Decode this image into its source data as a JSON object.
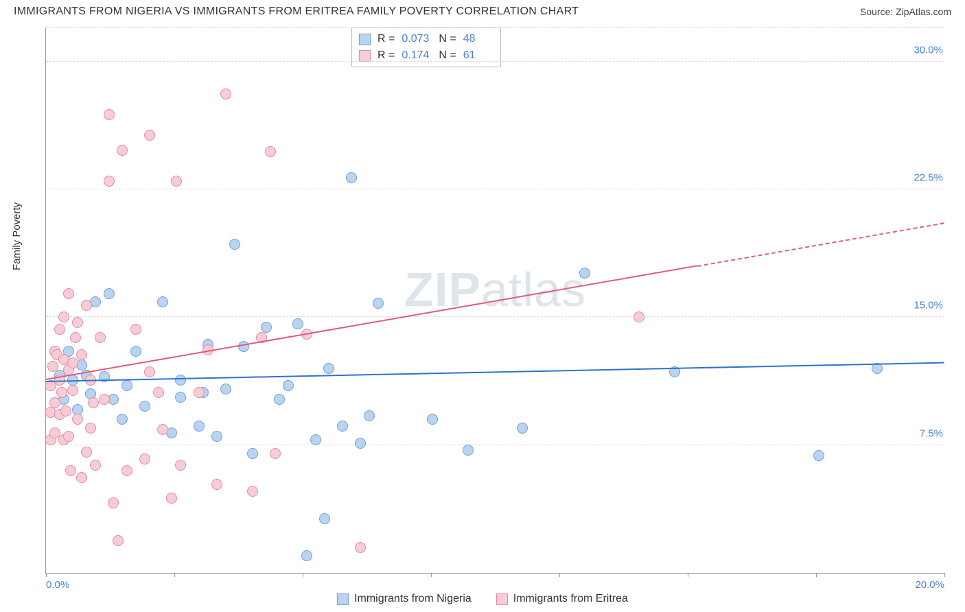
{
  "header": {
    "title": "IMMIGRANTS FROM NIGERIA VS IMMIGRANTS FROM ERITREA FAMILY POVERTY CORRELATION CHART",
    "source": "Source: ZipAtlas.com"
  },
  "watermark": {
    "strong": "ZIP",
    "light": "atlas"
  },
  "chart": {
    "type": "scatter",
    "ylabel": "Family Poverty",
    "xlim": [
      0,
      20
    ],
    "ylim": [
      0,
      32
    ],
    "x_ticks": [
      0,
      2.857,
      5.714,
      8.571,
      11.429,
      14.286,
      17.143,
      20
    ],
    "x_tick_labels": {
      "0": "0.0%",
      "20": "20.0%"
    },
    "y_grid": [
      7.5,
      15.0,
      22.5,
      30.0
    ],
    "y_tick_labels": [
      "7.5%",
      "15.0%",
      "22.5%",
      "30.0%"
    ],
    "background_color": "#ffffff",
    "grid_color": "#d8d8d8",
    "axis_color": "#999999",
    "tick_label_color": "#4a7fd4",
    "marker_radius": 8,
    "marker_border": 1,
    "series": [
      {
        "name": "Immigrants from Nigeria",
        "fill": "#b9d3f0",
        "stroke": "#6fa0dd",
        "R": "0.073",
        "N": "48",
        "trend": {
          "y_start": 11.2,
          "y_end": 12.3,
          "x_end_solid": 20,
          "color": "#2d72d0"
        },
        "points": [
          [
            0.3,
            11.6
          ],
          [
            0.4,
            10.2
          ],
          [
            0.5,
            13.0
          ],
          [
            0.6,
            11.3
          ],
          [
            0.7,
            9.6
          ],
          [
            0.8,
            12.2
          ],
          [
            0.9,
            11.6
          ],
          [
            1.0,
            10.5
          ],
          [
            1.1,
            15.9
          ],
          [
            1.3,
            11.5
          ],
          [
            1.4,
            16.4
          ],
          [
            1.5,
            10.2
          ],
          [
            1.7,
            9.0
          ],
          [
            1.8,
            11.0
          ],
          [
            2.0,
            13.0
          ],
          [
            2.2,
            9.8
          ],
          [
            2.6,
            15.9
          ],
          [
            2.8,
            8.2
          ],
          [
            3.0,
            10.3
          ],
          [
            3.0,
            11.3
          ],
          [
            3.4,
            8.6
          ],
          [
            3.5,
            10.6
          ],
          [
            3.6,
            13.4
          ],
          [
            3.8,
            8.0
          ],
          [
            4.0,
            10.8
          ],
          [
            4.2,
            19.3
          ],
          [
            4.4,
            13.3
          ],
          [
            4.6,
            7.0
          ],
          [
            4.9,
            14.4
          ],
          [
            5.2,
            10.2
          ],
          [
            5.4,
            11.0
          ],
          [
            5.6,
            14.6
          ],
          [
            5.8,
            1.0
          ],
          [
            6.0,
            7.8
          ],
          [
            6.2,
            3.2
          ],
          [
            6.3,
            12.0
          ],
          [
            6.6,
            8.6
          ],
          [
            6.8,
            23.2
          ],
          [
            7.0,
            7.6
          ],
          [
            7.2,
            9.2
          ],
          [
            7.4,
            15.8
          ],
          [
            8.6,
            9.0
          ],
          [
            9.4,
            7.2
          ],
          [
            10.6,
            8.5
          ],
          [
            12.0,
            17.6
          ],
          [
            14.0,
            11.8
          ],
          [
            17.2,
            6.9
          ],
          [
            18.5,
            12.0
          ]
        ]
      },
      {
        "name": "Immigrants from Eritrea",
        "fill": "#f6cdd6",
        "stroke": "#e58aa1",
        "R": "0.174",
        "N": "61",
        "trend": {
          "y_start": 11.3,
          "y_end": 20.5,
          "x_end_solid": 14.5,
          "color": "#e15a80"
        },
        "points": [
          [
            0.1,
            11.0
          ],
          [
            0.1,
            9.4
          ],
          [
            0.1,
            7.8
          ],
          [
            0.15,
            12.1
          ],
          [
            0.2,
            10.0
          ],
          [
            0.2,
            13.0
          ],
          [
            0.2,
            8.2
          ],
          [
            0.25,
            12.8
          ],
          [
            0.3,
            11.3
          ],
          [
            0.3,
            9.3
          ],
          [
            0.3,
            14.3
          ],
          [
            0.35,
            10.6
          ],
          [
            0.4,
            7.8
          ],
          [
            0.4,
            12.5
          ],
          [
            0.4,
            15.0
          ],
          [
            0.45,
            9.5
          ],
          [
            0.5,
            11.9
          ],
          [
            0.5,
            16.4
          ],
          [
            0.5,
            8.0
          ],
          [
            0.55,
            6.0
          ],
          [
            0.6,
            12.3
          ],
          [
            0.6,
            10.7
          ],
          [
            0.65,
            13.8
          ],
          [
            0.7,
            14.7
          ],
          [
            0.7,
            9.0
          ],
          [
            0.8,
            5.6
          ],
          [
            0.8,
            12.8
          ],
          [
            0.9,
            7.1
          ],
          [
            0.9,
            15.7
          ],
          [
            1.0,
            11.3
          ],
          [
            1.0,
            8.5
          ],
          [
            1.05,
            10.0
          ],
          [
            1.1,
            6.3
          ],
          [
            1.2,
            13.8
          ],
          [
            1.3,
            10.2
          ],
          [
            1.4,
            26.9
          ],
          [
            1.4,
            23.0
          ],
          [
            1.5,
            4.1
          ],
          [
            1.6,
            1.9
          ],
          [
            1.7,
            24.8
          ],
          [
            1.8,
            6.0
          ],
          [
            2.0,
            14.3
          ],
          [
            2.2,
            6.7
          ],
          [
            2.3,
            11.8
          ],
          [
            2.3,
            25.7
          ],
          [
            2.5,
            10.6
          ],
          [
            2.6,
            8.4
          ],
          [
            2.8,
            4.4
          ],
          [
            2.9,
            23.0
          ],
          [
            3.0,
            6.3
          ],
          [
            3.4,
            10.6
          ],
          [
            3.6,
            13.1
          ],
          [
            3.8,
            5.2
          ],
          [
            4.0,
            28.1
          ],
          [
            4.6,
            4.8
          ],
          [
            4.8,
            13.8
          ],
          [
            5.0,
            24.7
          ],
          [
            5.1,
            7.0
          ],
          [
            5.8,
            14.0
          ],
          [
            7.0,
            1.5
          ],
          [
            13.2,
            15.0
          ]
        ]
      }
    ]
  }
}
